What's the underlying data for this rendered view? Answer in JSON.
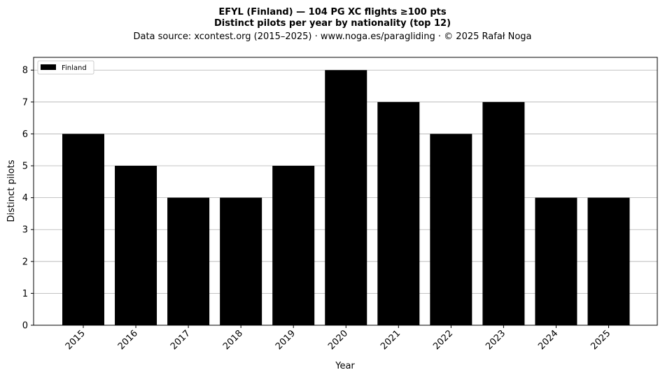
{
  "chart_data": {
    "type": "bar",
    "title_line1": "EFYL (Finland)  —  104 PG XC flights ≥100 pts",
    "title_line2": "Distinct pilots per year by nationality (top 12)",
    "subtitle": "Data source: xcontest.org (2015–2025)  ·  www.noga.es/paragliding  ·  © 2025 Rafał Noga",
    "xlabel": "Year",
    "ylabel": "Distinct pilots",
    "categories": [
      "2015",
      "2016",
      "2017",
      "2018",
      "2019",
      "2020",
      "2021",
      "2022",
      "2023",
      "2024",
      "2025"
    ],
    "series": [
      {
        "name": "Finland",
        "color": "#000000",
        "values": [
          6,
          5,
          4,
          4,
          5,
          8,
          7,
          6,
          7,
          4,
          4
        ]
      }
    ],
    "ylim": [
      0,
      8.4
    ],
    "yticks": [
      0,
      1,
      2,
      3,
      4,
      5,
      6,
      7,
      8
    ],
    "grid": "y",
    "legend": "top-left"
  }
}
